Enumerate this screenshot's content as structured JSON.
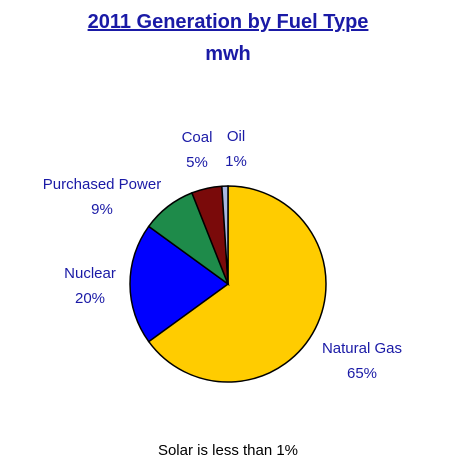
{
  "chart_data": {
    "type": "pie",
    "title": "2011 Generation by Fuel Type",
    "subtitle": "mwh",
    "slices": [
      {
        "label": "Natural Gas",
        "percent_label": "65%",
        "value": 65,
        "color": "#FFCC00"
      },
      {
        "label": "Nuclear",
        "percent_label": "20%",
        "value": 20,
        "color": "#0000FF"
      },
      {
        "label": "Purchased Power",
        "percent_label": "9%",
        "value": 9,
        "color": "#1E8B4A"
      },
      {
        "label": "Coal",
        "percent_label": "5%",
        "value": 5,
        "color": "#7A0A0A"
      },
      {
        "label": "Oil",
        "percent_label": "1%",
        "value": 1,
        "color": "#A9B7E0"
      }
    ],
    "footnote": "Solar is less than 1%",
    "text_color": "#1A1AA6",
    "title_color": "#1A1AA6",
    "background": "#FFFFFF"
  }
}
